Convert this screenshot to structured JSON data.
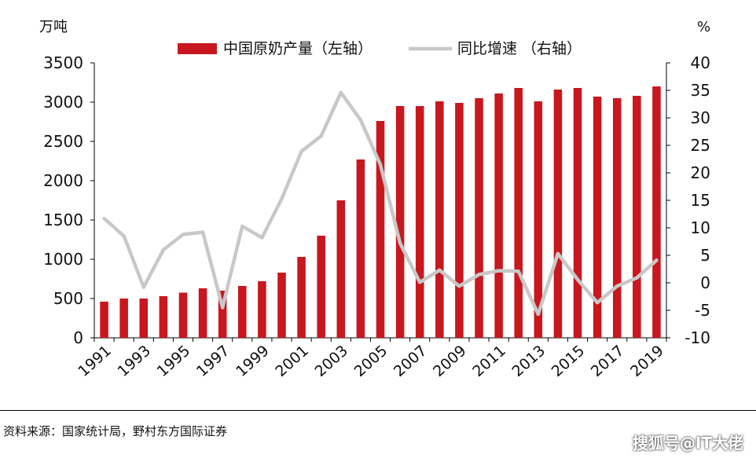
{
  "chart_data": {
    "type": "bar",
    "left_unit": "万吨",
    "right_unit": "%",
    "x": [
      1991,
      1992,
      1993,
      1994,
      1995,
      1996,
      1997,
      1998,
      1999,
      2000,
      2001,
      2002,
      2003,
      2004,
      2005,
      2006,
      2007,
      2008,
      2009,
      2010,
      2011,
      2012,
      2013,
      2014,
      2015,
      2016,
      2017,
      2018,
      2019
    ],
    "x_tick_labels": [
      "1991",
      "1993",
      "1995",
      "1997",
      "1999",
      "2001",
      "2003",
      "2005",
      "2007",
      "2009",
      "2011",
      "2013",
      "2015",
      "2017",
      "2019"
    ],
    "series": [
      {
        "name": "中国原奶产量（左轴）",
        "type": "bar",
        "axis": "left",
        "color": "#c8171e",
        "values": [
          460,
          500,
          500,
          530,
          575,
          630,
          600,
          660,
          720,
          830,
          1030,
          1300,
          1750,
          2270,
          2760,
          2950,
          2950,
          3010,
          2990,
          3050,
          3110,
          3180,
          3010,
          3160,
          3180,
          3070,
          3050,
          3080,
          3200
        ]
      },
      {
        "name": "同比增速 （右轴）",
        "type": "line",
        "axis": "right",
        "color": "#c8c8c8",
        "values": [
          11.7,
          8.5,
          -0.8,
          6.0,
          8.8,
          9.2,
          -4.5,
          10.3,
          8.2,
          15.3,
          23.9,
          26.7,
          34.6,
          29.6,
          21.5,
          7.2,
          0.1,
          2.3,
          -0.6,
          1.5,
          2.2,
          2.1,
          -5.7,
          5.3,
          0.6,
          -3.6,
          -0.6,
          0.9,
          4.1
        ]
      }
    ],
    "left_ylim": [
      0,
      3500
    ],
    "left_ticks": [
      "0",
      "500",
      "1000",
      "1500",
      "2000",
      "2500",
      "3000",
      "3500"
    ],
    "right_ylim": [
      -10,
      40
    ],
    "right_ticks": [
      "-10",
      "-5",
      "0",
      "5",
      "10",
      "15",
      "20",
      "25",
      "30",
      "35",
      "40"
    ],
    "legend_position": "top-center",
    "grid": false
  },
  "source_text": "资料来源：国家统计局，野村东方国际证券",
  "watermark_text": "搜狐号@IT大佬"
}
